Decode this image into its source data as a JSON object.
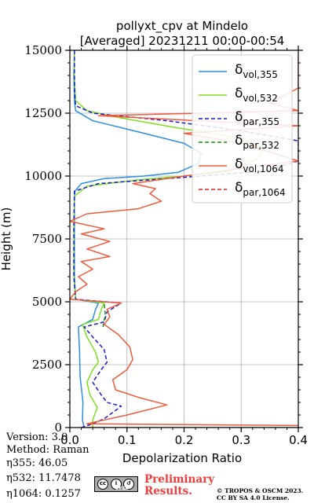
{
  "chart_data": {
    "type": "line",
    "title": "pollyxt_cpv at Mindelo",
    "subtitle": "[Averaged] 20231211 00:00-00:54",
    "xlabel": "Depolarization Ratio",
    "ylabel": "Height (m)",
    "xlim": [
      0.0,
      0.4
    ],
    "ylim": [
      0,
      15000
    ],
    "x_ticks": [
      0.0,
      0.1,
      0.2,
      0.3,
      0.4
    ],
    "x_tick_labels": [
      "0.0",
      "0.1",
      "0.2",
      "0.3",
      "0.4"
    ],
    "y_ticks": [
      0,
      2500,
      5000,
      7500,
      10000,
      12500,
      15000
    ],
    "y_tick_labels": [
      "0",
      "2500",
      "5000",
      "7500",
      "10000",
      "12500",
      "15000"
    ],
    "grid": true,
    "legend_position": "top-right",
    "series": [
      {
        "name": "δ_vol,355",
        "legend_main": "δ",
        "legend_sub": "vol,355",
        "color": "#2b8ee6",
        "style": "solid",
        "points": [
          [
            0.025,
            0
          ],
          [
            0.022,
            300
          ],
          [
            0.023,
            1000
          ],
          [
            0.018,
            2000
          ],
          [
            0.017,
            3000
          ],
          [
            0.015,
            4000
          ],
          [
            0.04,
            4300
          ],
          [
            0.045,
            4700
          ],
          [
            0.05,
            4950
          ],
          [
            0.01,
            5100
          ],
          [
            0.008,
            6000
          ],
          [
            0.008,
            8000
          ],
          [
            0.008,
            9000
          ],
          [
            0.009,
            9400
          ],
          [
            0.02,
            9700
          ],
          [
            0.06,
            9900
          ],
          [
            0.13,
            10000
          ],
          [
            0.19,
            10150
          ],
          [
            0.225,
            10500
          ],
          [
            0.23,
            10900
          ],
          [
            0.2,
            11300
          ],
          [
            0.13,
            11700
          ],
          [
            0.04,
            12200
          ],
          [
            0.01,
            12600
          ],
          [
            0.008,
            13000
          ],
          [
            0.007,
            14000
          ],
          [
            0.008,
            15000
          ]
        ]
      },
      {
        "name": "δ_vol,532",
        "legend_main": "δ",
        "legend_sub": "vol,532",
        "color": "#7ddf1e",
        "style": "solid",
        "points": [
          [
            0.04,
            0
          ],
          [
            0.04,
            300
          ],
          [
            0.048,
            800
          ],
          [
            0.035,
            1300
          ],
          [
            0.03,
            1800
          ],
          [
            0.04,
            2300
          ],
          [
            0.05,
            2600
          ],
          [
            0.045,
            3000
          ],
          [
            0.03,
            3600
          ],
          [
            0.022,
            4100
          ],
          [
            0.05,
            4300
          ],
          [
            0.055,
            4700
          ],
          [
            0.06,
            4950
          ],
          [
            0.01,
            5100
          ],
          [
            0.007,
            6000
          ],
          [
            0.007,
            8000
          ],
          [
            0.008,
            9200
          ],
          [
            0.03,
            9600
          ],
          [
            0.12,
            9850
          ],
          [
            0.2,
            10000
          ],
          [
            0.28,
            10200
          ],
          [
            0.33,
            10700
          ],
          [
            0.34,
            11100
          ],
          [
            0.3,
            11500
          ],
          [
            0.18,
            11950
          ],
          [
            0.08,
            12350
          ],
          [
            0.03,
            12600
          ],
          [
            0.01,
            13000
          ],
          [
            0.008,
            14000
          ],
          [
            0.008,
            15000
          ]
        ]
      },
      {
        "name": "δ_par,355",
        "legend_main": "δ",
        "legend_sub": "par,355",
        "color": "#1a1acc",
        "style": "dashed",
        "points": [
          [
            0.02,
            0
          ],
          [
            0.04,
            150
          ],
          [
            0.06,
            350
          ],
          [
            0.09,
            850
          ],
          [
            0.065,
            1000
          ],
          [
            0.055,
            1300
          ],
          [
            0.04,
            1800
          ],
          [
            0.055,
            2300
          ],
          [
            0.065,
            2600
          ],
          [
            0.06,
            3100
          ],
          [
            0.04,
            3600
          ],
          [
            0.025,
            4000
          ],
          [
            0.06,
            4200
          ],
          [
            0.065,
            4600
          ],
          [
            0.09,
            4950
          ],
          [
            0.01,
            5100
          ],
          [
            0.007,
            6000
          ],
          [
            0.007,
            8000
          ],
          [
            0.008,
            9400
          ],
          [
            0.05,
            9700
          ],
          [
            0.2,
            9950
          ],
          [
            0.34,
            10200
          ],
          [
            0.4,
            10600
          ],
          [
            0.4,
            11400
          ],
          [
            0.3,
            11800
          ],
          [
            0.17,
            12200
          ],
          [
            0.04,
            12500
          ],
          [
            0.01,
            12800
          ],
          [
            0.008,
            13500
          ],
          [
            0.008,
            15000
          ]
        ]
      },
      {
        "name": "δ_par,532",
        "legend_main": "δ",
        "legend_sub": "par,532",
        "color": "#1a8a1a",
        "style": "dashed",
        "points": [
          [
            0.058,
            4000
          ],
          [
            0.062,
            4500
          ],
          [
            0.06,
            4950
          ]
        ]
      },
      {
        "name": "δ_vol,1064",
        "legend_main": "δ",
        "legend_sub": "vol,1064",
        "color": "#f05a3a",
        "style": "solid",
        "points": [
          [
            0.02,
            0
          ],
          [
            0.4,
            0
          ],
          [
            0.4,
            80
          ],
          [
            0.03,
            150
          ],
          [
            0.1,
            500
          ],
          [
            0.17,
            900
          ],
          [
            0.12,
            1200
          ],
          [
            0.08,
            1500
          ],
          [
            0.075,
            1900
          ],
          [
            0.1,
            2300
          ],
          [
            0.11,
            2700
          ],
          [
            0.105,
            3200
          ],
          [
            0.085,
            3700
          ],
          [
            0.06,
            4100
          ],
          [
            0.07,
            4400
          ],
          [
            0.065,
            4700
          ],
          [
            0.09,
            4950
          ],
          [
            0.0,
            5100
          ],
          [
            0.01,
            5400
          ],
          [
            0.03,
            5700
          ],
          [
            0.015,
            6000
          ],
          [
            0.04,
            6300
          ],
          [
            0.02,
            6600
          ],
          [
            0.07,
            6800
          ],
          [
            0.03,
            7100
          ],
          [
            0.07,
            7400
          ],
          [
            0.02,
            7700
          ],
          [
            0.06,
            7900
          ],
          [
            0.0,
            8200
          ],
          [
            0.03,
            8500
          ],
          [
            0.12,
            8700
          ],
          [
            0.16,
            9000
          ],
          [
            0.14,
            9300
          ],
          [
            0.15,
            9500
          ],
          [
            0.11,
            9700
          ],
          [
            0.2,
            10000
          ],
          [
            0.3,
            10300
          ],
          [
            0.4,
            10600
          ],
          [
            0.3,
            11300
          ],
          [
            0.2,
            11700
          ],
          [
            0.4,
            12000
          ],
          [
            0.05,
            12400
          ],
          [
            0.4,
            12600
          ],
          [
            0.35,
            12900
          ],
          [
            0.4,
            13500
          ],
          [
            0.4,
            14800
          ]
        ]
      },
      {
        "name": "δ_par,1064",
        "legend_main": "δ",
        "legend_sub": "par,1064",
        "color": "#d62020",
        "style": "dashed",
        "points": []
      }
    ]
  },
  "info": {
    "version": "Version: 3.0",
    "method": "Method: Raman",
    "eta355": "η355:  46.05",
    "eta532": "η532: 11.7478",
    "eta1064": "η1064: 0.1257"
  },
  "badge": {
    "label": "BY SA",
    "icons": [
      "cc-icon",
      "by-icon",
      "sa-icon"
    ]
  },
  "preliminary": {
    "line1": "Preliminary",
    "line2": "Results."
  },
  "license": {
    "line1": "© TROPOS & OSCM 2023.",
    "line2": "CC BY SA 4.0 License."
  }
}
